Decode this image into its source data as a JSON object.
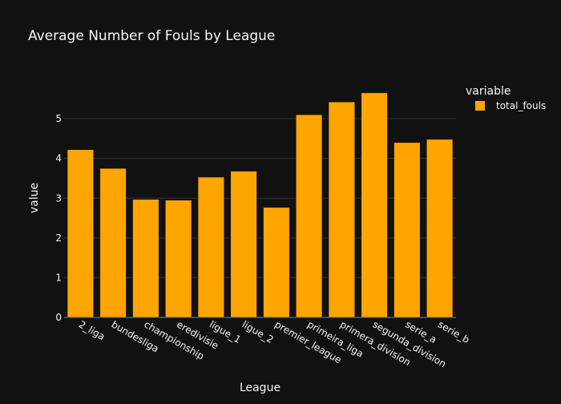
{
  "chart_data": {
    "type": "bar",
    "title": "Average Number of Fouls by League",
    "xlabel": "League",
    "ylabel": "value",
    "categories": [
      "2_liga",
      "bundesliga",
      "championship",
      "eredivisie",
      "ligue_1",
      "ligue_2",
      "premier_league",
      "primeira_liga",
      "primera_division",
      "segunda_division",
      "serie_a",
      "serie_b"
    ],
    "series": [
      {
        "name": "total_fouls",
        "values": [
          4.22,
          3.75,
          2.97,
          2.95,
          3.53,
          3.68,
          2.77,
          5.1,
          5.42,
          5.65,
          4.4,
          4.48
        ],
        "color": "#FFA500"
      }
    ],
    "ylim": [
      0,
      5.97
    ],
    "yticks": [
      0,
      1,
      2,
      3,
      4,
      5
    ],
    "legend": {
      "title": "variable",
      "placement": "top-right"
    },
    "grid": true
  },
  "colors": {
    "background": "#111111",
    "gridline": "#283442",
    "text": "#f2f5fa",
    "bar": "#FFA500"
  }
}
